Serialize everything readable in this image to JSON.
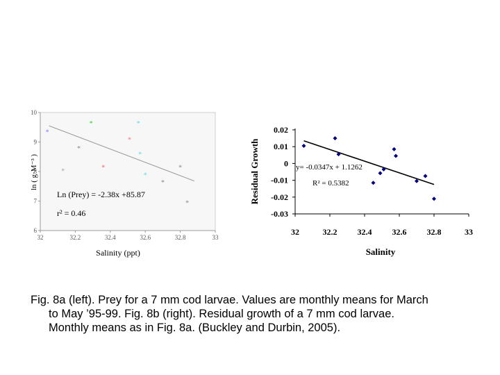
{
  "chart_data": [
    {
      "type": "scatter",
      "title": "",
      "xlabel": "Salinity (ppt)",
      "ylabel": "ln ( g·M⁻³ )",
      "xlim": [
        32,
        33
      ],
      "ylim": [
        6,
        10
      ],
      "xticks": [
        "32",
        "32.2",
        "32.4",
        "32.6",
        "32.8",
        "33"
      ],
      "yticks": [
        "6",
        "7",
        "8",
        "9",
        "10"
      ],
      "grid": false,
      "points": [
        {
          "x": 32.04,
          "y": 9.35,
          "color": "#7b7bff"
        },
        {
          "x": 32.13,
          "y": 8.03,
          "color": "#aaaaaa"
        },
        {
          "x": 32.22,
          "y": 8.8,
          "color": "#888888"
        },
        {
          "x": 32.29,
          "y": 9.65,
          "color": "#33cc33"
        },
        {
          "x": 32.36,
          "y": 8.15,
          "color": "#ff6060"
        },
        {
          "x": 32.51,
          "y": 9.1,
          "color": "#ff7070"
        },
        {
          "x": 32.56,
          "y": 9.65,
          "color": "#55dddd"
        },
        {
          "x": 32.57,
          "y": 8.6,
          "color": "#55dddd"
        },
        {
          "x": 32.6,
          "y": 7.9,
          "color": "#55dddd"
        },
        {
          "x": 32.7,
          "y": 7.65,
          "color": "#888888"
        },
        {
          "x": 32.8,
          "y": 8.15,
          "color": "#888888"
        },
        {
          "x": 32.84,
          "y": 6.95,
          "color": "#888888"
        }
      ],
      "trend": {
        "x": [
          32.05,
          32.88
        ],
        "y": [
          9.55,
          7.68
        ]
      },
      "annotations": [
        "Ln (Prey) = -2.38x +85.87",
        "r² = 0.46"
      ]
    },
    {
      "type": "scatter",
      "title": "",
      "xlabel": "Salinity",
      "ylabel": "Residual Growth",
      "xlim": [
        32,
        33
      ],
      "ylim": [
        -0.03,
        0.02
      ],
      "xticks": [
        "32",
        "32.2",
        "32.4",
        "32.6",
        "32.8",
        "33"
      ],
      "yticks": [
        "0.02",
        "0.01",
        "0",
        "-0.01",
        "-0.02",
        "-0.03"
      ],
      "grid": false,
      "marker_color": "#000080",
      "points": [
        {
          "x": 32.05,
          "y": 0.0105
        },
        {
          "x": 32.23,
          "y": 0.015
        },
        {
          "x": 32.25,
          "y": 0.0055
        },
        {
          "x": 32.45,
          "y": -0.0115
        },
        {
          "x": 32.49,
          "y": -0.0058
        },
        {
          "x": 32.51,
          "y": -0.0035
        },
        {
          "x": 32.57,
          "y": 0.0085
        },
        {
          "x": 32.58,
          "y": 0.0045
        },
        {
          "x": 32.7,
          "y": -0.0105
        },
        {
          "x": 32.75,
          "y": -0.0075
        },
        {
          "x": 32.8,
          "y": -0.021
        }
      ],
      "trend": {
        "x": [
          32.05,
          32.8
        ],
        "y": [
          0.0135,
          -0.0125
        ]
      },
      "annotations": [
        "y= -0.0347x + 1.1262",
        "R² = 0.5382"
      ]
    }
  ],
  "caption": {
    "line1": "Fig. 8a (left). Prey for a 7 mm cod larvae.  Values are monthly means for March",
    "line2": "to May ’95-99.  Fig. 8b (right). Residual growth of a 7 mm cod larvae.",
    "line3": "Monthly means as in Fig. 8a. (Buckley and Durbin, 2005)."
  }
}
